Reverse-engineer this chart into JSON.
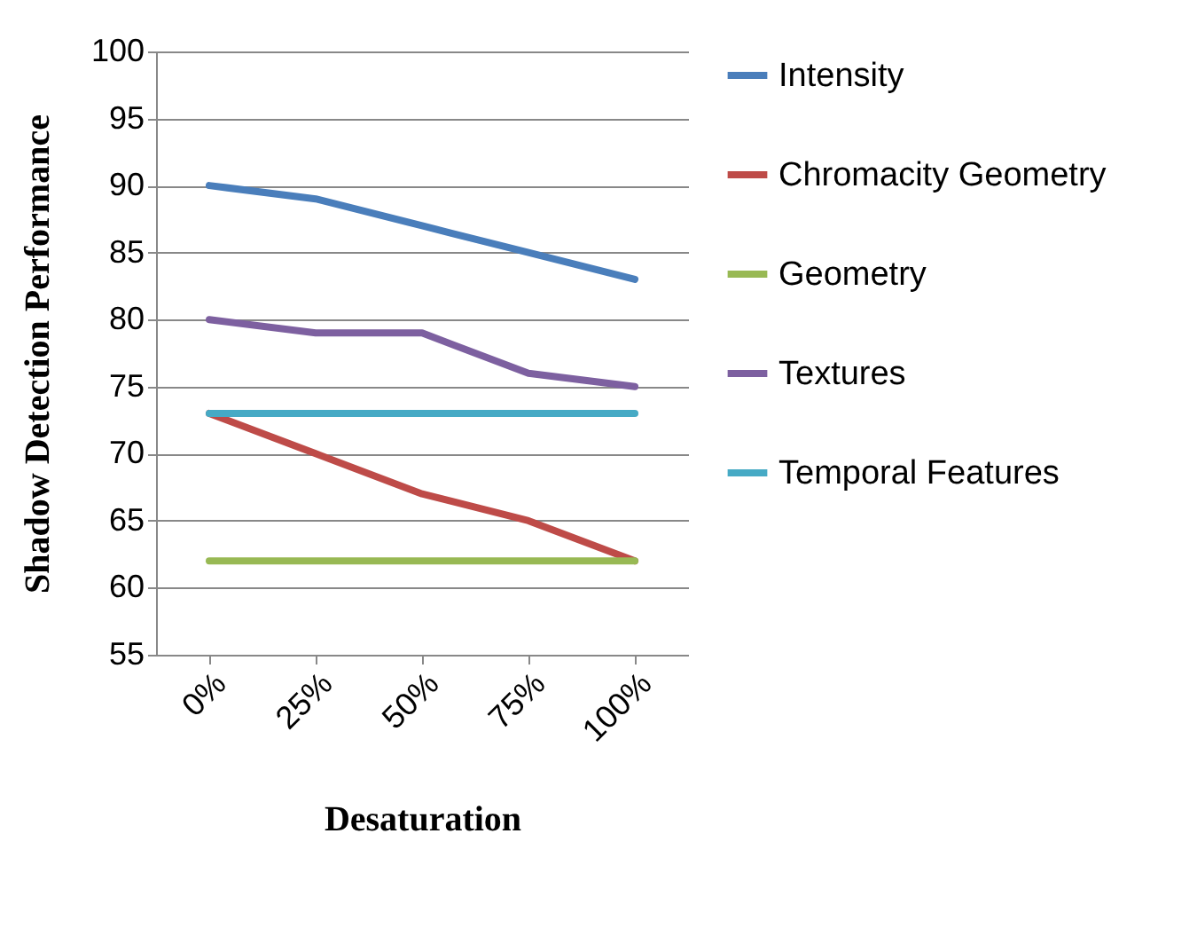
{
  "chart_data": {
    "type": "line",
    "xlabel": "Desaturation",
    "ylabel": "Shadow Detection Performance",
    "categories": [
      "0%",
      "25%",
      "50%",
      "75%",
      "100%"
    ],
    "series": [
      {
        "name": "Intensity",
        "color": "#4a7ebb",
        "values": [
          90,
          89,
          87,
          85,
          83
        ]
      },
      {
        "name": "Chromacity Geometry",
        "color": "#be4b48",
        "values": [
          73,
          70,
          67,
          65,
          62
        ]
      },
      {
        "name": "Geometry",
        "color": "#98b954",
        "values": [
          62,
          62,
          62,
          62,
          62
        ]
      },
      {
        "name": "Textures",
        "color": "#7d60a0",
        "values": [
          80,
          79,
          79,
          76,
          75
        ]
      },
      {
        "name": "Temporal Features",
        "color": "#46aac5",
        "values": [
          73,
          73,
          73,
          73,
          73
        ]
      }
    ],
    "ylim": [
      55,
      100
    ],
    "yticks": [
      55,
      60,
      65,
      70,
      75,
      80,
      85,
      90,
      95,
      100
    ],
    "grid": "y",
    "legend": "right",
    "marker": "none",
    "line_style": "solid"
  }
}
